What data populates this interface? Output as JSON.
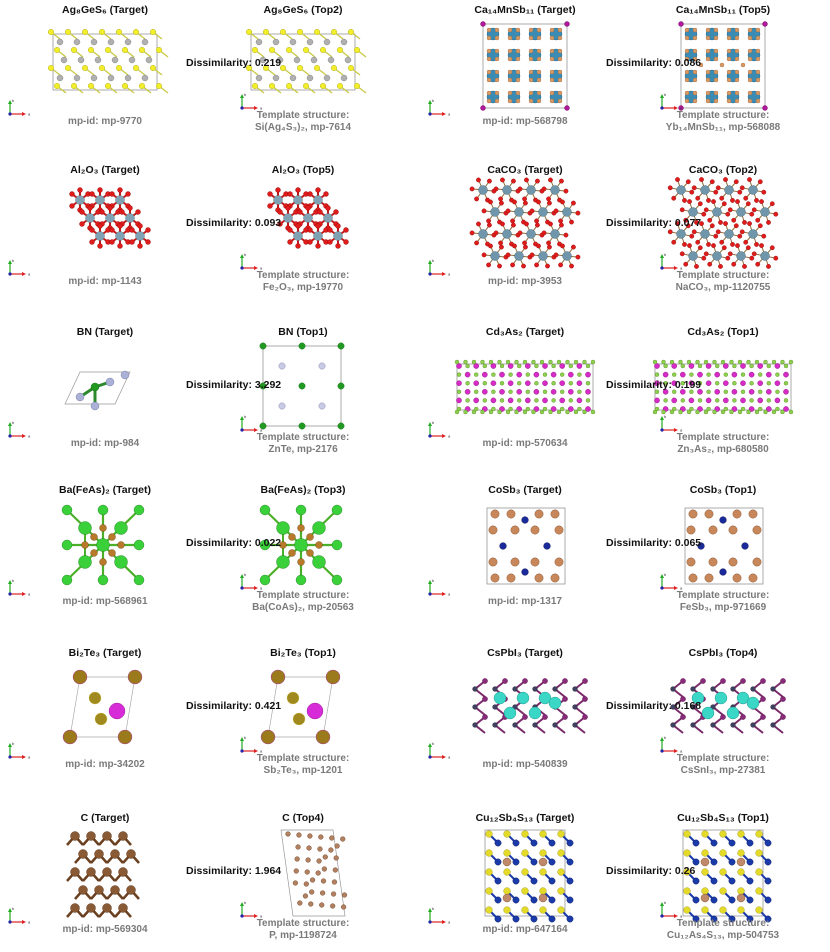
{
  "dissimilarity_label": "Dissimilarity:",
  "target_prefix": "mp-id: ",
  "template_prefix": "Template structure:",
  "axis_labels": [
    "a",
    "b",
    "c"
  ],
  "colors": {
    "title": "#111111",
    "subtitle": "#7a7a7a"
  },
  "rows": [
    [
      {
        "target_title": "Ag₈GeS₆ (Target)",
        "target_mpid": "mp-9770",
        "pred_title": "Ag₈GeS₆ (Top2)",
        "dissimilarity": "0.219",
        "template_formula": "Si(Ag₄S₃)₂, mp-7614",
        "style": "ag"
      },
      {
        "target_title": "Ca₁₄MnSb₁₁ (Target)",
        "target_mpid": "mp-568798",
        "pred_title": "Ca₁₄MnSb₁₁ (Top5)",
        "dissimilarity": "0.086",
        "template_formula": "Yb₁₄MnSb₁₁, mp-568088",
        "style": "ca14"
      }
    ],
    [
      {
        "target_title": "Al₂O₃ (Target)",
        "target_mpid": "mp-1143",
        "pred_title": "Al₂O₃ (Top5)",
        "dissimilarity": "0.093",
        "template_formula": "Fe₂O₃, mp-19770",
        "style": "al2o3"
      },
      {
        "target_title": "CaCO₃ (Target)",
        "target_mpid": "mp-3953",
        "pred_title": "CaCO₃ (Top2)",
        "dissimilarity": "0.077",
        "template_formula": "NaCO₃, mp-1120755",
        "style": "caco3"
      }
    ],
    [
      {
        "target_title": "BN (Target)",
        "target_mpid": "mp-984",
        "pred_title": "BN (Top1)",
        "dissimilarity": "3.292",
        "template_formula": "ZnTe, mp-2176",
        "style": "bn"
      },
      {
        "target_title": "Cd₃As₂ (Target)",
        "target_mpid": "mp-570634",
        "pred_title": "Cd₃As₂ (Top1)",
        "dissimilarity": "0.199",
        "template_formula": "Zn₃As₂, mp-680580",
        "style": "cd3as2"
      }
    ],
    [
      {
        "target_title": "Ba(FeAs)₂ (Target)",
        "target_mpid": "mp-568961",
        "pred_title": "Ba(FeAs)₂ (Top3)",
        "dissimilarity": "0.022",
        "template_formula": "Ba(CoAs)₂, mp-20563",
        "style": "bafeas"
      },
      {
        "target_title": "CoSb₃ (Target)",
        "target_mpid": "mp-1317",
        "pred_title": "CoSb₃ (Top1)",
        "dissimilarity": "0.065",
        "template_formula": "FeSb₃, mp-971669",
        "style": "cosb3"
      }
    ],
    [
      {
        "target_title": "Bi₂Te₃ (Target)",
        "target_mpid": "mp-34202",
        "pred_title": "Bi₂Te₃ (Top1)",
        "dissimilarity": "0.421",
        "template_formula": "Sb₂Te₃, mp-1201",
        "style": "bi2te3"
      },
      {
        "target_title": "CsPbI₃ (Target)",
        "target_mpid": "mp-540839",
        "pred_title": "CsPbI₃ (Top4)",
        "dissimilarity": "0.168",
        "template_formula": "CsSnI₃, mp-27381",
        "style": "cspbi3"
      }
    ],
    [
      {
        "target_title": "C (Target)",
        "target_mpid": "mp-569304",
        "pred_title": "C (Top4)",
        "dissimilarity": "1.964",
        "template_formula": "P, mp-1198724",
        "style": "c"
      },
      {
        "target_title": "Cu₁₂Sb₄S₁₃ (Target)",
        "target_mpid": "mp-647164",
        "pred_title": "Cu₁₂Sb₄S₁₃ (Top1)",
        "dissimilarity": "0.26",
        "template_formula": "Cu₁₂As₄S₁₃, mp-504753",
        "style": "cu12"
      }
    ]
  ]
}
